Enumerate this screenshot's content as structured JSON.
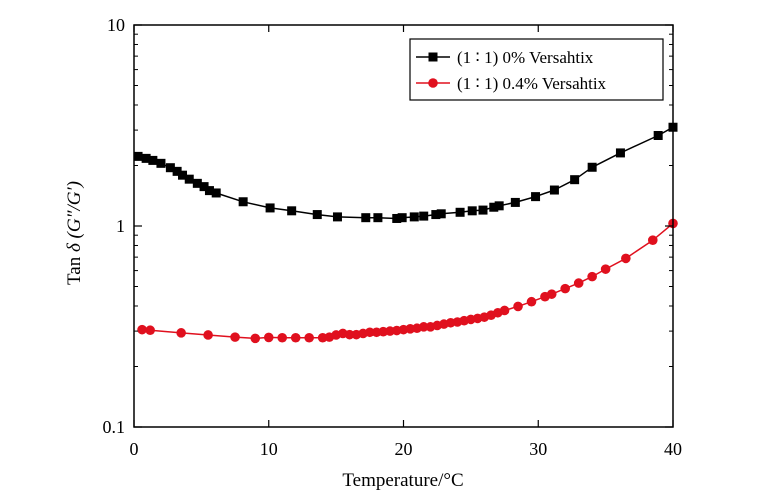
{
  "chart_data": {
    "type": "line",
    "title": "",
    "xlabel": "Temperature/°C",
    "ylabel": "Tan δ (G″/G′)",
    "ylabel_parts": {
      "prefix": "Tan ",
      "delta": "δ",
      "paren": " (G″/G′)"
    },
    "xlim": [
      0,
      40
    ],
    "ylim": [
      0.1,
      10
    ],
    "yscale": "log",
    "grid": false,
    "legend_position": "top-right",
    "x_ticks": [
      0,
      10,
      20,
      30,
      40
    ],
    "x_tick_labels": [
      "0",
      "10",
      "20",
      "30",
      "40"
    ],
    "y_ticks": [
      0.1,
      1,
      10
    ],
    "y_tick_labels": [
      "0.1",
      "1",
      "10"
    ],
    "series": [
      {
        "name": "(1 ∶ 1) 0% Versahtix",
        "color": "#000000",
        "marker": "square",
        "x": [
          0.3,
          0.9,
          1.4,
          2.0,
          2.7,
          3.2,
          3.6,
          4.1,
          4.7,
          5.2,
          5.6,
          6.1,
          8.1,
          10.1,
          11.7,
          13.6,
          15.1,
          17.2,
          18.1,
          19.5,
          19.9,
          20.8,
          21.5,
          22.4,
          22.8,
          24.2,
          25.1,
          25.9,
          26.7,
          27.1,
          28.3,
          29.8,
          31.2,
          32.7,
          34.0,
          36.1,
          38.9,
          40.0
        ],
        "y": [
          2.22,
          2.17,
          2.12,
          2.05,
          1.95,
          1.87,
          1.79,
          1.71,
          1.63,
          1.57,
          1.5,
          1.46,
          1.32,
          1.23,
          1.19,
          1.14,
          1.11,
          1.1,
          1.1,
          1.09,
          1.1,
          1.11,
          1.12,
          1.14,
          1.15,
          1.17,
          1.19,
          1.2,
          1.24,
          1.26,
          1.31,
          1.4,
          1.51,
          1.7,
          1.96,
          2.31,
          2.82,
          3.1
        ]
      },
      {
        "name": "(1 ∶ 1) 0.4% Versahtix",
        "color": "#e0101e",
        "marker": "circle",
        "x": [
          0.6,
          1.2,
          3.5,
          5.5,
          7.5,
          9.0,
          10.0,
          11.0,
          12.0,
          13.0,
          14.0,
          14.5,
          15.0,
          15.5,
          16.0,
          16.5,
          17.0,
          17.5,
          18.0,
          18.5,
          19.0,
          19.5,
          20.0,
          20.5,
          21.0,
          21.5,
          22.0,
          22.5,
          23.0,
          23.5,
          24.0,
          24.5,
          25.0,
          25.5,
          26.0,
          26.5,
          27.0,
          27.5,
          28.5,
          29.5,
          30.5,
          31.0,
          32.0,
          33.0,
          34.0,
          35.0,
          36.5,
          38.5,
          40.0
        ],
        "y": [
          0.305,
          0.303,
          0.294,
          0.287,
          0.28,
          0.276,
          0.279,
          0.278,
          0.278,
          0.278,
          0.278,
          0.28,
          0.287,
          0.292,
          0.288,
          0.288,
          0.292,
          0.296,
          0.296,
          0.298,
          0.3,
          0.302,
          0.305,
          0.308,
          0.31,
          0.315,
          0.315,
          0.32,
          0.325,
          0.33,
          0.333,
          0.338,
          0.343,
          0.347,
          0.352,
          0.36,
          0.37,
          0.38,
          0.398,
          0.42,
          0.445,
          0.458,
          0.488,
          0.52,
          0.56,
          0.61,
          0.69,
          0.85,
          1.03
        ]
      }
    ]
  }
}
